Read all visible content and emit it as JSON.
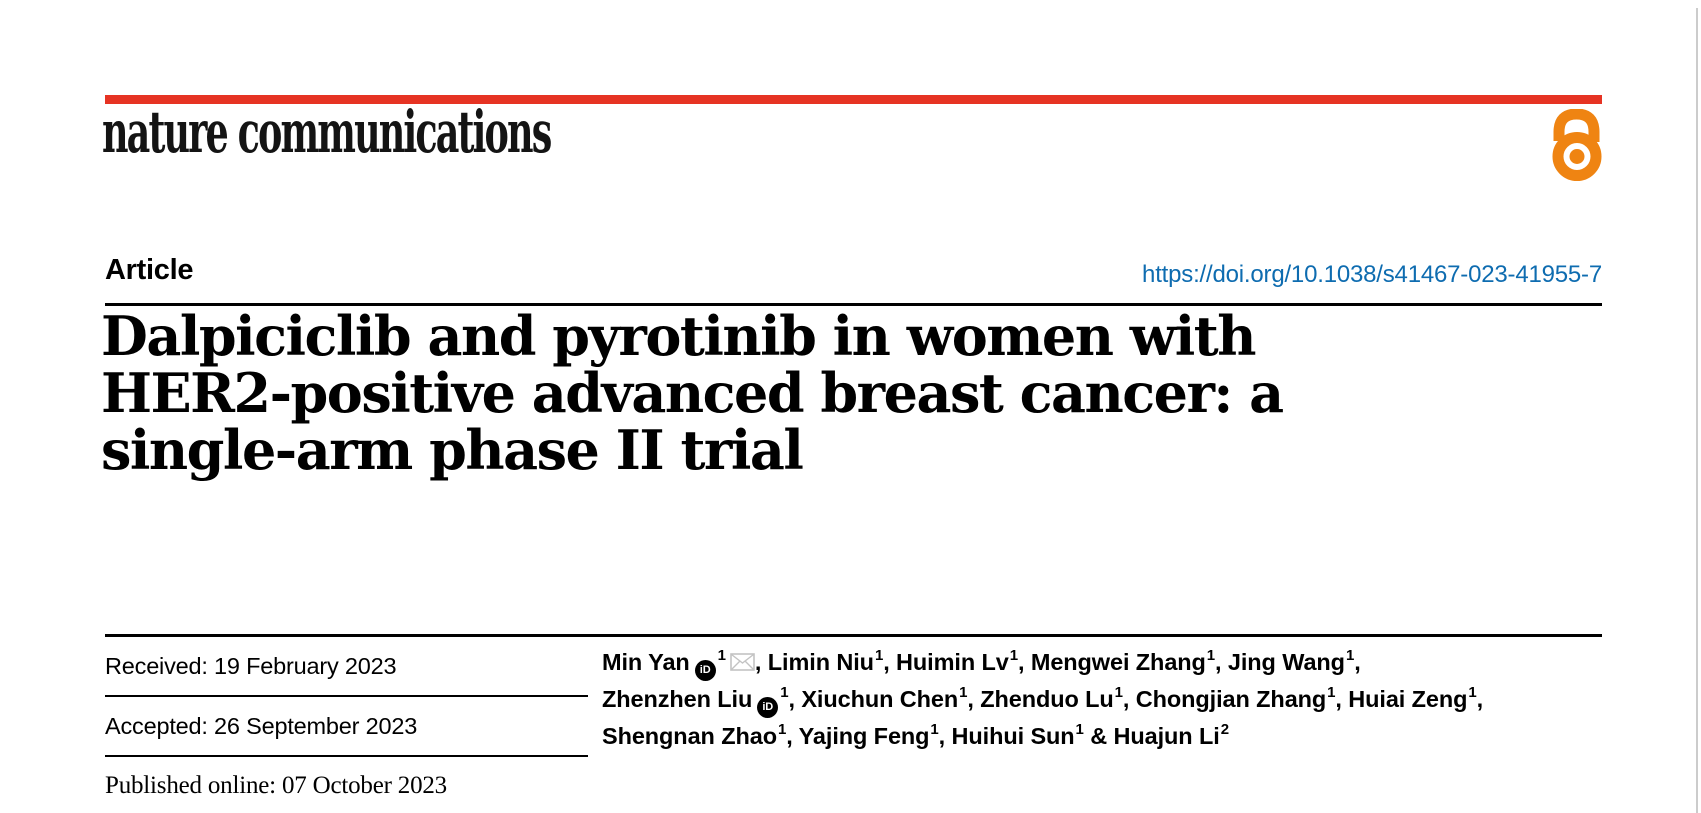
{
  "colors": {
    "brand_red": "#e63323",
    "link_blue": "#0e6cb0",
    "open_access_orange": "#ef8412",
    "rule_black": "#000000",
    "envelope_gray": "#c3c3c3",
    "page_edge_gray": "#cccccc"
  },
  "header": {
    "journal_logo": "nature communications",
    "open_access_icon": "open-access-lock"
  },
  "article": {
    "label": "Article",
    "doi": "https://doi.org/10.1038/s41467-023-41955-7",
    "title_lines": [
      "Dalpiciclib and pyrotinib in women with",
      "HER2-positive advanced breast cancer: a",
      "single-arm phase II trial"
    ]
  },
  "dates": {
    "rows": [
      {
        "label": "Received:",
        "value": "19 February 2023",
        "serif": false
      },
      {
        "label": "Accepted:",
        "value": "26 September 2023",
        "serif": false
      },
      {
        "label": "Published online:",
        "value": "07 October 2023",
        "serif": true
      }
    ]
  },
  "authors": {
    "orcid_icon_text": "iD",
    "lines": [
      [
        {
          "name": "Min Yan",
          "orcid": true,
          "sup": "1",
          "email": true,
          "suffix": ", "
        },
        {
          "name": "Limin Niu",
          "sup": "1",
          "suffix": ", "
        },
        {
          "name": "Huimin Lv",
          "sup": "1",
          "suffix": ", "
        },
        {
          "name": "Mengwei Zhang",
          "sup": "1",
          "suffix": ", "
        },
        {
          "name": "Jing Wang",
          "sup": "1",
          "suffix": ","
        }
      ],
      [
        {
          "name": "Zhenzhen Liu",
          "orcid": true,
          "sup": "1",
          "suffix": ", "
        },
        {
          "name": "Xiuchun Chen",
          "sup": "1",
          "suffix": ", "
        },
        {
          "name": "Zhenduo Lu",
          "sup": "1",
          "suffix": ", "
        },
        {
          "name": "Chongjian Zhang",
          "sup": "1",
          "suffix": ", "
        },
        {
          "name": "Huiai Zeng",
          "sup": "1",
          "suffix": ","
        }
      ],
      [
        {
          "name": "Shengnan Zhao",
          "sup": "1",
          "suffix": ", "
        },
        {
          "name": "Yajing Feng",
          "sup": "1",
          "suffix": ", "
        },
        {
          "name": "Huihui Sun",
          "sup": "1",
          "suffix": " & "
        },
        {
          "name": "Huajun Li",
          "sup": "2",
          "suffix": ""
        }
      ]
    ]
  }
}
